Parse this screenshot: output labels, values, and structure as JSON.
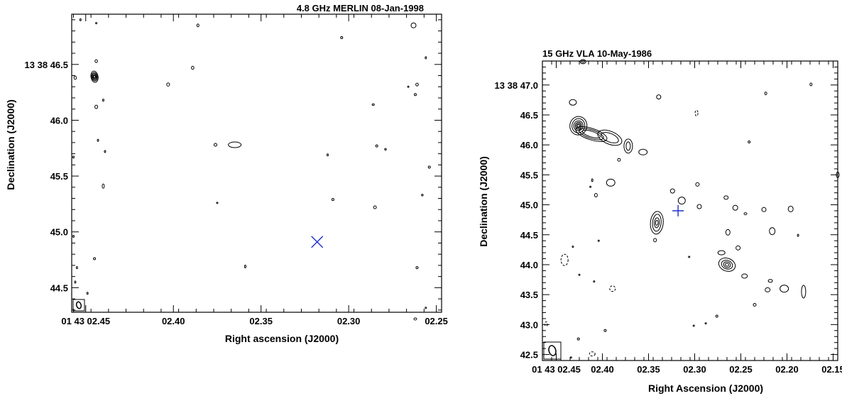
{
  "chart_data": [
    {
      "type": "contour",
      "title": "4.8 GHz MERLIN 08-Jan-1998",
      "xlabel": "Right ascension (J2000)",
      "ylabel": "Declination (J2000)",
      "x_reversed": true,
      "xlim": [
        2.458,
        2.247
      ],
      "ylim": [
        44.28,
        46.95
      ],
      "x_ticks": [
        {
          "value": 2.45,
          "label": "01 43 02.45"
        },
        {
          "value": 2.4,
          "label": "02.40"
        },
        {
          "value": 2.35,
          "label": "02.35"
        },
        {
          "value": 2.3,
          "label": "02.30"
        },
        {
          "value": 2.25,
          "label": "02.25"
        }
      ],
      "y_ticks": [
        {
          "value": 46.5,
          "label": "13 38 46.5"
        },
        {
          "value": 46.0,
          "label": "46.0"
        },
        {
          "value": 45.5,
          "label": "45.5"
        },
        {
          "value": 45.0,
          "label": "45.0"
        },
        {
          "value": 44.5,
          "label": "44.5"
        }
      ],
      "marker": {
        "shape": "x",
        "color": "#1f2fcc",
        "x": 2.318,
        "y": 44.91
      },
      "peak": {
        "x": 2.445,
        "y": 46.39
      },
      "grid": false
    },
    {
      "type": "contour",
      "title": "15 GHz VLA 10-May-1986",
      "xlabel": "Right Ascension (J2000)",
      "ylabel": "Declination (J2000)",
      "x_reversed": true,
      "xlim": [
        2.465,
        2.145
      ],
      "ylim": [
        42.4,
        47.4
      ],
      "x_ticks": [
        {
          "value": 2.45,
          "label": "01 43 02.45"
        },
        {
          "value": 2.4,
          "label": "02.40"
        },
        {
          "value": 2.35,
          "label": "02.35"
        },
        {
          "value": 2.3,
          "label": "02.30"
        },
        {
          "value": 2.25,
          "label": "02.25"
        },
        {
          "value": 2.2,
          "label": "02.20"
        },
        {
          "value": 2.15,
          "label": "02.15"
        }
      ],
      "y_ticks": [
        {
          "value": 47.0,
          "label": "13 38 47.0"
        },
        {
          "value": 46.5,
          "label": "46.5"
        },
        {
          "value": 46.0,
          "label": "46.0"
        },
        {
          "value": 45.5,
          "label": "45.5"
        },
        {
          "value": 45.0,
          "label": "45.0"
        },
        {
          "value": 44.5,
          "label": "44.5"
        },
        {
          "value": 44.0,
          "label": "44.0"
        },
        {
          "value": 43.5,
          "label": "43.5"
        },
        {
          "value": 43.0,
          "label": "43.0"
        },
        {
          "value": 42.5,
          "label": "42.5"
        }
      ],
      "marker": {
        "shape": "+",
        "color": "#1f2fcc",
        "x": 2.318,
        "y": 44.9
      },
      "peak": {
        "x": 2.426,
        "y": 46.32
      },
      "grid": false
    }
  ]
}
